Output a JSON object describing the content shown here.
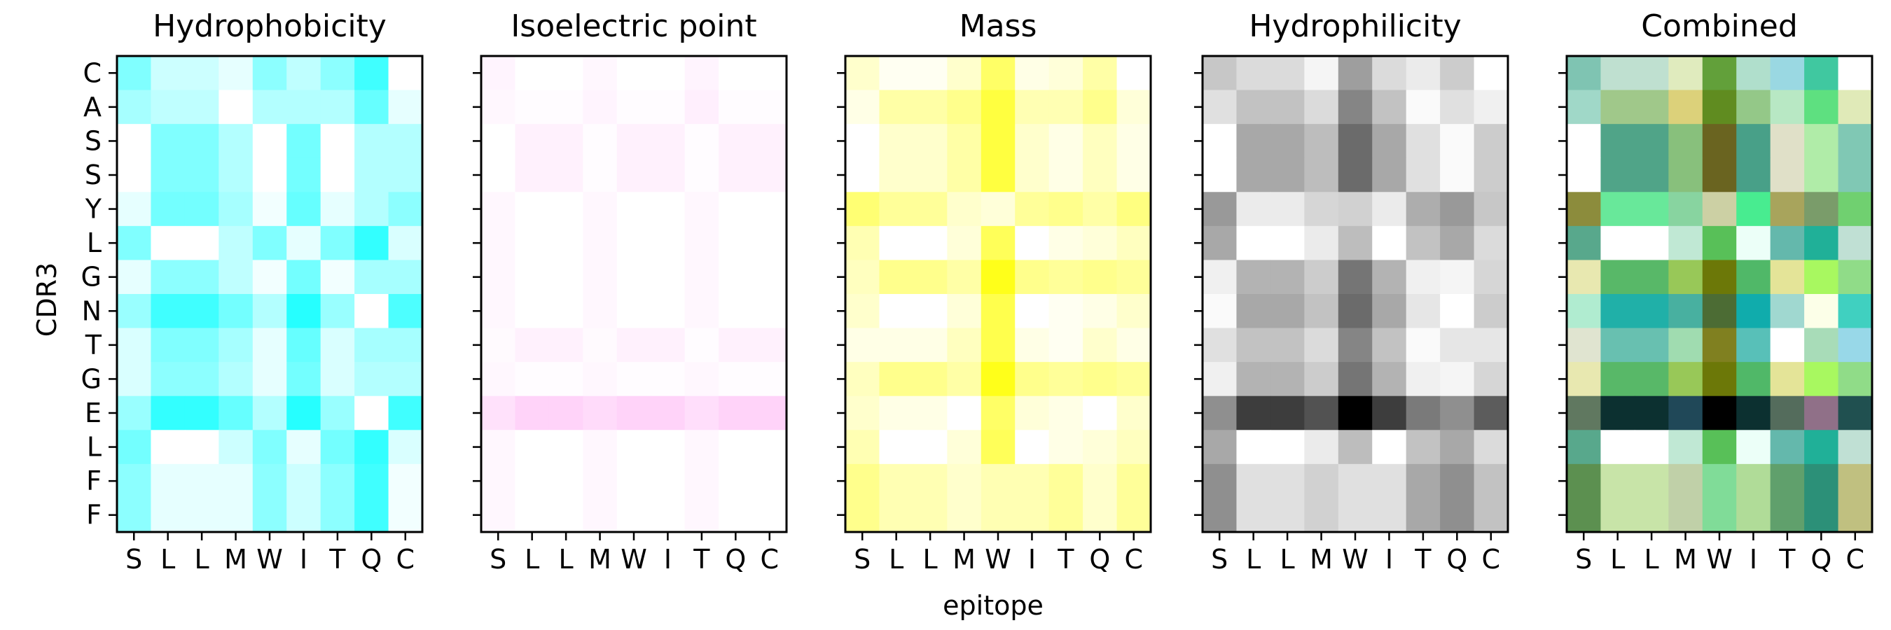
{
  "figure": {
    "y_axis_label": "CDR3",
    "x_axis_label": "epitope"
  },
  "chart_data": [
    {
      "type": "heatmap",
      "title": "Hydrophobicity",
      "x": [
        "S",
        "L",
        "L",
        "M",
        "W",
        "I",
        "T",
        "Q",
        "C"
      ],
      "y": [
        "C",
        "A",
        "S",
        "S",
        "Y",
        "L",
        "G",
        "N",
        "T",
        "G",
        "E",
        "L",
        "F",
        "F"
      ],
      "color": "#00ffff",
      "values": [
        [
          0.5,
          0.2,
          0.2,
          0.1,
          0.45,
          0.25,
          0.45,
          0.75,
          0.0
        ],
        [
          0.35,
          0.25,
          0.25,
          0.0,
          0.3,
          0.3,
          0.3,
          0.6,
          0.1
        ],
        [
          0.0,
          0.5,
          0.5,
          0.3,
          0.0,
          0.55,
          0.0,
          0.3,
          0.3
        ],
        [
          0.0,
          0.5,
          0.5,
          0.3,
          0.0,
          0.55,
          0.0,
          0.3,
          0.3
        ],
        [
          0.1,
          0.55,
          0.55,
          0.35,
          0.05,
          0.6,
          0.1,
          0.3,
          0.45
        ],
        [
          0.5,
          0.0,
          0.0,
          0.25,
          0.5,
          0.1,
          0.5,
          0.8,
          0.15
        ],
        [
          0.1,
          0.45,
          0.45,
          0.25,
          0.05,
          0.55,
          0.05,
          0.35,
          0.35
        ],
        [
          0.4,
          0.75,
          0.75,
          0.55,
          0.3,
          0.85,
          0.4,
          0.0,
          0.7
        ],
        [
          0.15,
          0.5,
          0.5,
          0.35,
          0.1,
          0.6,
          0.15,
          0.35,
          0.35
        ],
        [
          0.15,
          0.45,
          0.45,
          0.3,
          0.1,
          0.55,
          0.15,
          0.3,
          0.3
        ],
        [
          0.4,
          0.8,
          0.8,
          0.6,
          0.3,
          0.85,
          0.4,
          0.0,
          0.75
        ],
        [
          0.55,
          0.0,
          0.0,
          0.2,
          0.5,
          0.1,
          0.55,
          0.8,
          0.15
        ],
        [
          0.45,
          0.1,
          0.1,
          0.1,
          0.45,
          0.2,
          0.45,
          0.75,
          0.05
        ],
        [
          0.45,
          0.1,
          0.1,
          0.1,
          0.45,
          0.2,
          0.45,
          0.75,
          0.05
        ]
      ]
    },
    {
      "type": "heatmap",
      "title": "Isoelectric point",
      "x": [
        "S",
        "L",
        "L",
        "M",
        "W",
        "I",
        "T",
        "Q",
        "C"
      ],
      "y": [
        "C",
        "A",
        "S",
        "S",
        "Y",
        "L",
        "G",
        "N",
        "T",
        "G",
        "E",
        "L",
        "F",
        "F"
      ],
      "color": "#ffc8f8",
      "values": [
        [
          0.2,
          0.0,
          0.0,
          0.15,
          0.0,
          0.0,
          0.2,
          0.0,
          0.0
        ],
        [
          0.15,
          0.05,
          0.05,
          0.2,
          0.05,
          0.05,
          0.3,
          0.05,
          0.05
        ],
        [
          0.0,
          0.25,
          0.25,
          0.05,
          0.25,
          0.25,
          0.05,
          0.25,
          0.25
        ],
        [
          0.0,
          0.25,
          0.25,
          0.05,
          0.25,
          0.25,
          0.05,
          0.25,
          0.25
        ],
        [
          0.15,
          0.0,
          0.0,
          0.15,
          0.0,
          0.0,
          0.15,
          0.0,
          0.0
        ],
        [
          0.15,
          0.0,
          0.0,
          0.15,
          0.0,
          0.0,
          0.15,
          0.0,
          0.0
        ],
        [
          0.15,
          0.0,
          0.0,
          0.15,
          0.0,
          0.0,
          0.15,
          0.0,
          0.0
        ],
        [
          0.15,
          0.0,
          0.0,
          0.15,
          0.0,
          0.0,
          0.15,
          0.0,
          0.0
        ],
        [
          0.1,
          0.25,
          0.25,
          0.1,
          0.25,
          0.25,
          0.05,
          0.25,
          0.25
        ],
        [
          0.15,
          0.05,
          0.05,
          0.15,
          0.05,
          0.05,
          0.15,
          0.05,
          0.05
        ],
        [
          0.55,
          0.8,
          0.8,
          0.65,
          0.8,
          0.8,
          0.6,
          0.8,
          0.8
        ],
        [
          0.15,
          0.0,
          0.0,
          0.15,
          0.0,
          0.0,
          0.15,
          0.0,
          0.0
        ],
        [
          0.15,
          0.0,
          0.0,
          0.15,
          0.0,
          0.0,
          0.15,
          0.0,
          0.0
        ],
        [
          0.15,
          0.0,
          0.0,
          0.15,
          0.0,
          0.0,
          0.15,
          0.0,
          0.0
        ]
      ]
    },
    {
      "type": "heatmap",
      "title": "Mass",
      "x": [
        "S",
        "L",
        "L",
        "M",
        "W",
        "I",
        "T",
        "Q",
        "C"
      ],
      "y": [
        "C",
        "A",
        "S",
        "S",
        "Y",
        "L",
        "G",
        "N",
        "T",
        "G",
        "E",
        "L",
        "F",
        "F"
      ],
      "color": "#ffff00",
      "values": [
        [
          0.2,
          0.05,
          0.05,
          0.2,
          0.6,
          0.1,
          0.15,
          0.35,
          0.0
        ],
        [
          0.1,
          0.35,
          0.35,
          0.45,
          0.75,
          0.3,
          0.3,
          0.45,
          0.15
        ],
        [
          0.0,
          0.2,
          0.2,
          0.35,
          0.75,
          0.2,
          0.1,
          0.25,
          0.1
        ],
        [
          0.0,
          0.2,
          0.2,
          0.35,
          0.75,
          0.2,
          0.1,
          0.25,
          0.1
        ],
        [
          0.55,
          0.4,
          0.4,
          0.2,
          0.15,
          0.4,
          0.45,
          0.35,
          0.5
        ],
        [
          0.3,
          0.0,
          0.0,
          0.15,
          0.65,
          0.0,
          0.1,
          0.15,
          0.25
        ],
        [
          0.25,
          0.45,
          0.45,
          0.35,
          0.9,
          0.45,
          0.4,
          0.45,
          0.4
        ],
        [
          0.2,
          0.0,
          0.0,
          0.15,
          0.7,
          0.0,
          0.05,
          0.1,
          0.2
        ],
        [
          0.1,
          0.1,
          0.1,
          0.25,
          0.7,
          0.1,
          0.05,
          0.2,
          0.1
        ],
        [
          0.25,
          0.45,
          0.45,
          0.35,
          0.9,
          0.45,
          0.4,
          0.45,
          0.4
        ],
        [
          0.2,
          0.1,
          0.1,
          0.0,
          0.6,
          0.15,
          0.1,
          0.0,
          0.2
        ],
        [
          0.3,
          0.0,
          0.0,
          0.15,
          0.65,
          0.0,
          0.1,
          0.15,
          0.25
        ],
        [
          0.45,
          0.3,
          0.3,
          0.2,
          0.3,
          0.3,
          0.4,
          0.2,
          0.4
        ],
        [
          0.45,
          0.3,
          0.3,
          0.2,
          0.3,
          0.3,
          0.4,
          0.2,
          0.4
        ]
      ]
    },
    {
      "type": "heatmap",
      "title": "Hydrophilicity",
      "x": [
        "S",
        "L",
        "L",
        "M",
        "W",
        "I",
        "T",
        "Q",
        "C"
      ],
      "y": [
        "C",
        "A",
        "S",
        "S",
        "Y",
        "L",
        "G",
        "N",
        "T",
        "G",
        "E",
        "L",
        "F",
        "F"
      ],
      "color": "#000000",
      "values": [
        [
          0.22,
          0.14,
          0.14,
          0.04,
          0.38,
          0.14,
          0.08,
          0.2,
          0.0
        ],
        [
          0.12,
          0.24,
          0.24,
          0.14,
          0.48,
          0.24,
          0.02,
          0.12,
          0.06
        ],
        [
          0.0,
          0.34,
          0.34,
          0.26,
          0.58,
          0.34,
          0.12,
          0.02,
          0.2
        ],
        [
          0.0,
          0.34,
          0.34,
          0.26,
          0.58,
          0.34,
          0.12,
          0.02,
          0.2
        ],
        [
          0.4,
          0.08,
          0.08,
          0.16,
          0.18,
          0.08,
          0.32,
          0.4,
          0.22
        ],
        [
          0.34,
          0.0,
          0.0,
          0.08,
          0.26,
          0.0,
          0.24,
          0.34,
          0.14
        ],
        [
          0.06,
          0.3,
          0.3,
          0.2,
          0.54,
          0.3,
          0.06,
          0.04,
          0.16
        ],
        [
          0.02,
          0.34,
          0.34,
          0.24,
          0.58,
          0.34,
          0.1,
          0.0,
          0.2
        ],
        [
          0.12,
          0.24,
          0.24,
          0.14,
          0.48,
          0.24,
          0.02,
          0.1,
          0.1
        ],
        [
          0.06,
          0.3,
          0.3,
          0.2,
          0.54,
          0.3,
          0.06,
          0.04,
          0.16
        ],
        [
          0.44,
          0.76,
          0.76,
          0.68,
          1.0,
          0.76,
          0.52,
          0.44,
          0.64
        ],
        [
          0.34,
          0.0,
          0.0,
          0.08,
          0.26,
          0.0,
          0.24,
          0.34,
          0.14
        ],
        [
          0.44,
          0.12,
          0.12,
          0.18,
          0.12,
          0.12,
          0.34,
          0.44,
          0.24
        ],
        [
          0.44,
          0.12,
          0.12,
          0.18,
          0.12,
          0.12,
          0.34,
          0.44,
          0.24
        ]
      ]
    },
    {
      "type": "heatmap",
      "title": "Combined",
      "x": [
        "S",
        "L",
        "L",
        "M",
        "W",
        "I",
        "T",
        "Q",
        "C"
      ],
      "y": [
        "C",
        "A",
        "S",
        "S",
        "Y",
        "L",
        "G",
        "N",
        "T",
        "G",
        "E",
        "L",
        "F",
        "F"
      ],
      "cells": [
        [
          "#7fc4b2",
          "#bfe0d0",
          "#bfe0d0",
          "#e0ebbe",
          "#62a03a",
          "#b0dfcc",
          "#9ad8e2",
          "#40c8a0",
          "#ffffff"
        ],
        [
          "#a0d8c8",
          "#a0c88a",
          "#a0c88a",
          "#dcd17a",
          "#608c20",
          "#94c888",
          "#b8e8c4",
          "#5ee080",
          "#e0eab8"
        ],
        [
          "#ffffff",
          "#50a488",
          "#50a488",
          "#88c07c",
          "#6a6420",
          "#48a088",
          "#e0e0c8",
          "#b0eca8",
          "#80c8b4"
        ],
        [
          "#ffffff",
          "#50a488",
          "#50a488",
          "#88c07c",
          "#6a6420",
          "#48a088",
          "#e0e0c8",
          "#b0eca8",
          "#80c8b4"
        ],
        [
          "#8c8c3c",
          "#68e89a",
          "#68e89a",
          "#88d4a0",
          "#ccd0a4",
          "#48ec90",
          "#a8a45c",
          "#7a9c6a",
          "#70d070"
        ],
        [
          "#58a88c",
          "#ffffff",
          "#ffffff",
          "#c0e8d4",
          "#58c058",
          "#ecfff8",
          "#64b8ac",
          "#20b098",
          "#c0e0d4"
        ],
        [
          "#e8e8b0",
          "#58b868",
          "#58b868",
          "#98c858",
          "#6c7808",
          "#50b868",
          "#e4e498",
          "#a8f860",
          "#90dc88"
        ],
        [
          "#b0ecd0",
          "#20b0a8",
          "#20b0a8",
          "#48b0a0",
          "#4c6c34",
          "#10acac",
          "#a0d8d0",
          "#fcffe8",
          "#40d0c0"
        ],
        [
          "#e0e4d0",
          "#68c0b0",
          "#68c0b0",
          "#a0dcb0",
          "#808020",
          "#58c0b8",
          "#ffffff",
          "#a8dcb8",
          "#98d8e8"
        ],
        [
          "#e8e8b0",
          "#58b868",
          "#58b868",
          "#98c858",
          "#6c7808",
          "#50b868",
          "#e4e498",
          "#a8f860",
          "#90dc88"
        ],
        [
          "#607860",
          "#0c3030",
          "#0c3030",
          "#204858",
          "#000000",
          "#0c3030",
          "#546c5c",
          "#907088",
          "#205050"
        ],
        [
          "#58a88c",
          "#ffffff",
          "#ffffff",
          "#c0e8d4",
          "#58c058",
          "#ecfff8",
          "#64b8ac",
          "#20b098",
          "#c0e0d4"
        ],
        [
          "#5c9050",
          "#c8e4a8",
          "#c8e4a8",
          "#c0d0a8",
          "#80dc98",
          "#b0dc98",
          "#60a06c",
          "#2c9078",
          "#c0c080"
        ],
        [
          "#5c9050",
          "#c8e4a8",
          "#c8e4a8",
          "#c0d0a8",
          "#80dc98",
          "#b0dc98",
          "#60a06c",
          "#2c9078",
          "#c0c080"
        ]
      ]
    }
  ]
}
